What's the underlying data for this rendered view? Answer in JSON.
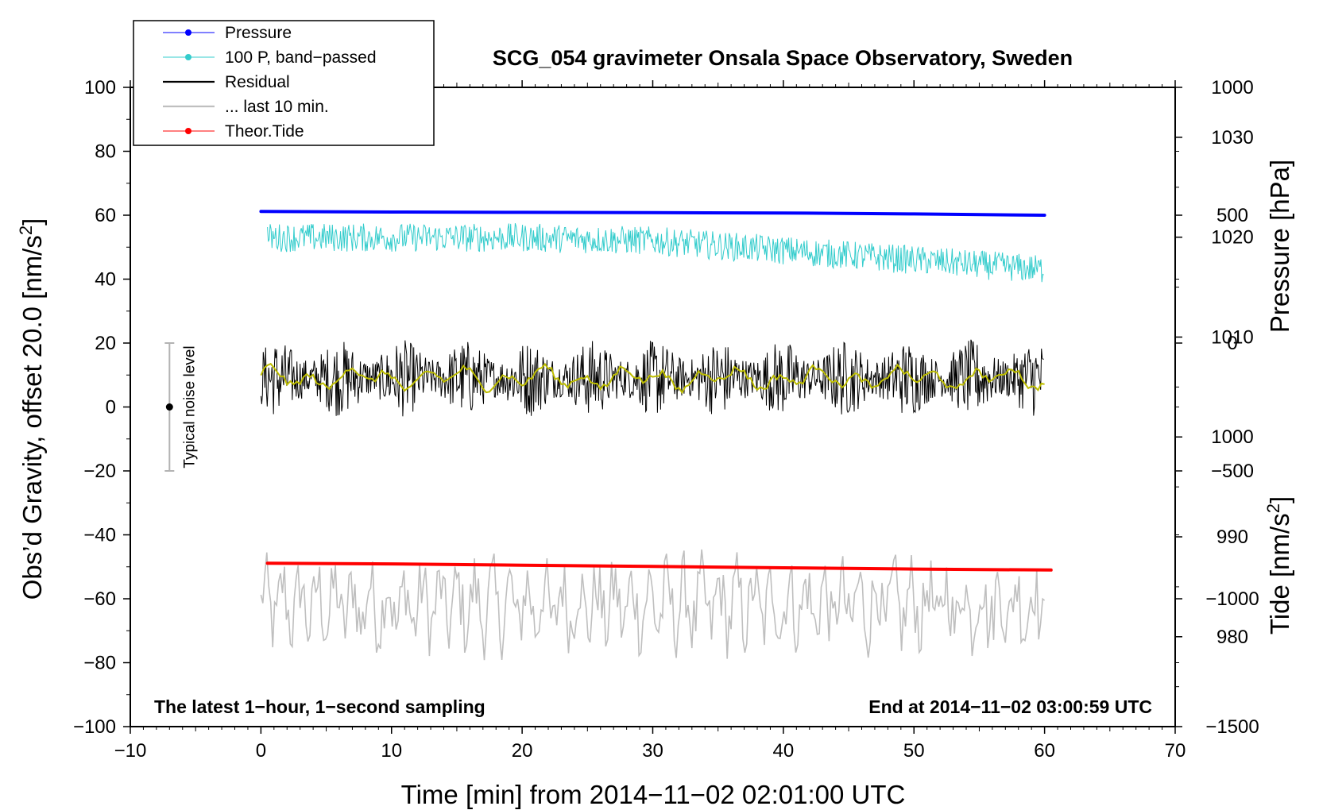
{
  "chart_data": {
    "type": "line",
    "title": "SCG_054 gravimeter Onsala Space Observatory, Sweden",
    "xlabel": "Time [min] from 2014−11−02 02:01:00 UTC",
    "ylabel_left_main": "Obs’d Gravity, offset 20.0 [nm/s",
    "ylabel_left_sup": "2",
    "ylabel_left_close": "]",
    "ylabel_right_pressure": "Pressure [hPa]",
    "ylabel_right_tide_main": "Tide [nm/s",
    "ylabel_right_tide_sup": "2",
    "ylabel_right_tide_close": "]",
    "xlim": [
      -10,
      70
    ],
    "ylim_left": [
      -100,
      100
    ],
    "ylim_pressure": [
      971,
      1035
    ],
    "ylim_tide": [
      -1500,
      1000
    ],
    "x_ticks": [
      -10,
      0,
      10,
      20,
      30,
      40,
      50,
      60,
      70
    ],
    "x_tick_labels": [
      "−10",
      "0",
      "10",
      "20",
      "30",
      "40",
      "50",
      "60",
      "70"
    ],
    "y_left_ticks": [
      -100,
      -80,
      -60,
      -40,
      -20,
      0,
      20,
      40,
      60,
      80,
      100
    ],
    "y_left_tick_labels": [
      "−100",
      "−80",
      "−60",
      "−40",
      "−20",
      "0",
      "20",
      "40",
      "60",
      "80",
      "100"
    ],
    "y_pressure_ticks": [
      980,
      990,
      1000,
      1010,
      1020,
      1030
    ],
    "y_pressure_tick_labels": [
      "980",
      "990",
      "1000",
      "1010",
      "1020",
      "1030"
    ],
    "y_tide_ticks": [
      -1500,
      -1000,
      -500,
      0,
      500,
      1000
    ],
    "y_tide_tick_labels": [
      "−1500",
      "−1000",
      "−500",
      "0",
      "500",
      "1000"
    ],
    "footer_left": "The latest 1−hour, 1−second sampling",
    "footer_right": "End at 2014−11−02 03:00:59 UTC",
    "noise_label": "Typical noise level",
    "noise_bar": {
      "x": -7,
      "center": 0,
      "low": -20,
      "high": 20
    },
    "legend": [
      {
        "label": "Pressure",
        "color": "#0000ff",
        "marker": true
      },
      {
        "label": "100 P, band−passed",
        "color": "#33cccc",
        "marker": true
      },
      {
        "label": "Residual",
        "color": "#000000",
        "marker": false
      },
      {
        "label": "... last 10 min.",
        "color": "#bfbfbf",
        "marker": false
      },
      {
        "label": "Theor.Tide",
        "color": "#ff0000",
        "marker": true
      }
    ],
    "series": [
      {
        "name": "Pressure",
        "color": "#0000ff",
        "axis": "left",
        "x": [
          0,
          10,
          20,
          30,
          40,
          50,
          60
        ],
        "values": [
          61.2,
          61.0,
          60.9,
          60.8,
          60.7,
          60.4,
          60.0
        ]
      },
      {
        "name": "100 P, band-passed",
        "color": "#33cccc",
        "axis": "left",
        "x_start": 0.5,
        "x_end": 60,
        "trend": [
          [
            0,
            53
          ],
          [
            20,
            53
          ],
          [
            30,
            52
          ],
          [
            40,
            49
          ],
          [
            50,
            46
          ],
          [
            60,
            43
          ]
        ],
        "amplitude": 4.5
      },
      {
        "name": "Residual",
        "color": "#000000",
        "axis": "left",
        "x_start": 0,
        "x_end": 60,
        "mean": 9,
        "amplitude": 18
      },
      {
        "name": "Residual smoothed",
        "color": "#bdbd00",
        "axis": "left",
        "x_start": 0,
        "x_end": 60,
        "mean": 9,
        "amplitude": 5
      },
      {
        "name": "... last 10 min.",
        "color": "#bfbfbf",
        "axis": "left",
        "x_start": 0,
        "x_end": 60,
        "mean": -62,
        "amplitude": 16
      },
      {
        "name": "Theor.Tide",
        "color": "#ff0000",
        "axis": "left",
        "x": [
          0.5,
          10,
          20,
          30,
          40,
          50,
          60.5
        ],
        "values": [
          -48.9,
          -49.1,
          -49.5,
          -49.9,
          -50.3,
          -50.7,
          -51.0
        ]
      }
    ]
  }
}
